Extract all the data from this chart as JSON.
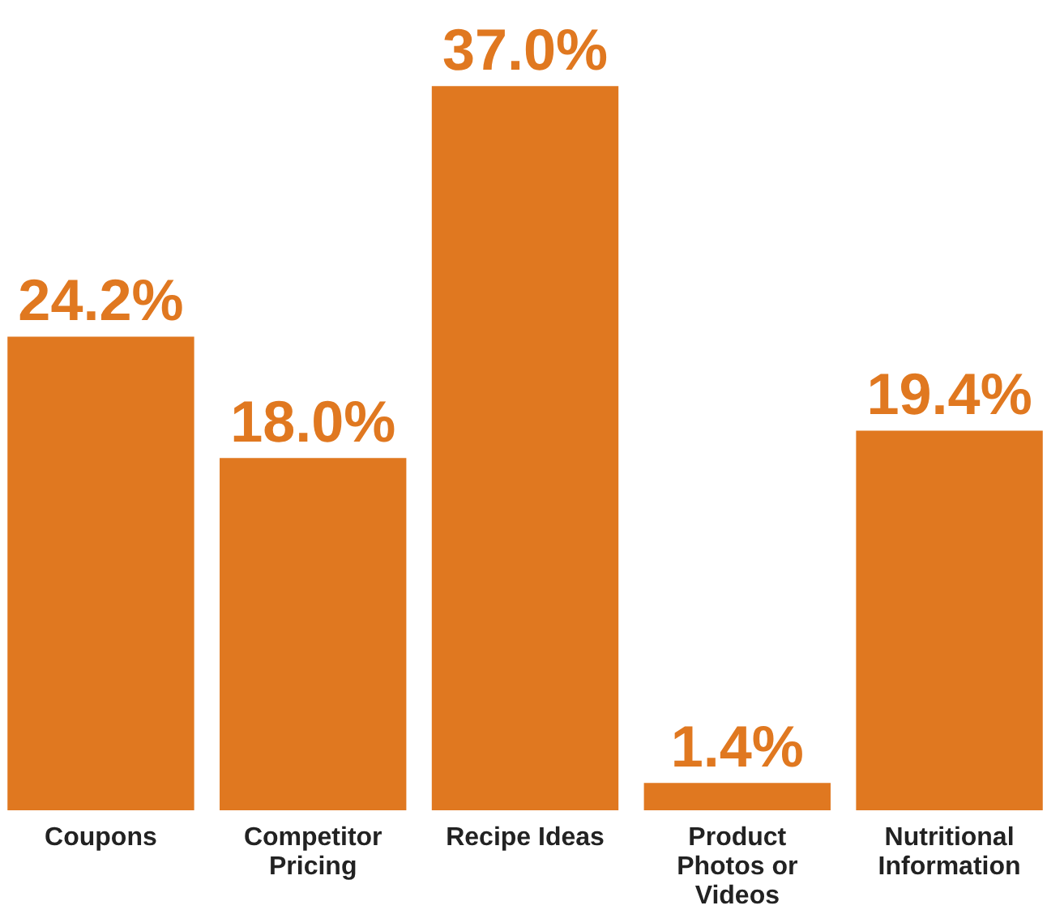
{
  "chart_data": {
    "type": "bar",
    "categories": [
      "Coupons",
      "Competitor\nPricing",
      "Recipe Ideas",
      "Product\nPhotos or\nVideos",
      "Nutritional\nInformation"
    ],
    "values": [
      24.2,
      18.0,
      37.0,
      1.4,
      19.4
    ],
    "value_labels": [
      "24.2%",
      "18.0%",
      "37.0%",
      "1.4%",
      "19.4%"
    ],
    "color": "#e07820",
    "tick_labels": "x",
    "grid": false
  }
}
